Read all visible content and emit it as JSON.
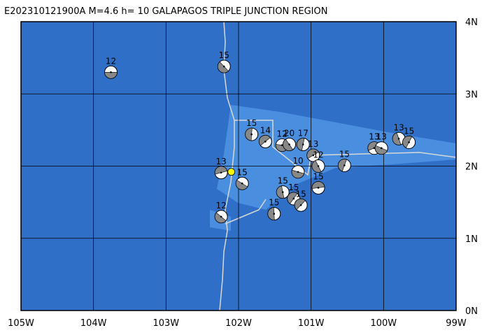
{
  "map": {
    "title": "E202310121900A M=4.6 h= 10 GALAPAGOS TRIPLE JUNCTION REGION",
    "lon_range": [
      -105,
      -99
    ],
    "lat_range": [
      0,
      4
    ],
    "lon_ticks": [
      {
        "value": -105,
        "label": "105W"
      },
      {
        "value": -104,
        "label": "104W"
      },
      {
        "value": -103,
        "label": "103W"
      },
      {
        "value": -102,
        "label": "102W"
      },
      {
        "value": -101,
        "label": "101W"
      },
      {
        "value": -100,
        "label": "100W"
      },
      {
        "value": -99,
        "label": "99W"
      }
    ],
    "lat_ticks": [
      {
        "value": 4,
        "label": "4N"
      },
      {
        "value": 3,
        "label": "3N"
      },
      {
        "value": 2,
        "label": "2N"
      },
      {
        "value": 1,
        "label": "1N"
      },
      {
        "value": 0,
        "label": "0N"
      }
    ],
    "events": [
      {
        "lon": -103.76,
        "lat": 3.3,
        "label": "12"
      },
      {
        "lon": -102.2,
        "lat": 3.38,
        "label": "15"
      },
      {
        "lon": -101.82,
        "lat": 2.44,
        "label": "15"
      },
      {
        "lon": -101.63,
        "lat": 2.34,
        "label": "14"
      },
      {
        "lon": -101.4,
        "lat": 2.29,
        "label": "12"
      },
      {
        "lon": -101.3,
        "lat": 2.3,
        "label": "20"
      },
      {
        "lon": -101.11,
        "lat": 2.3,
        "label": "17"
      },
      {
        "lon": -100.97,
        "lat": 2.15,
        "label": "13"
      },
      {
        "lon": -101.18,
        "lat": 1.92,
        "label": "10"
      },
      {
        "lon": -100.9,
        "lat": 2.0,
        "label": "12"
      },
      {
        "lon": -100.54,
        "lat": 2.01,
        "label": "15"
      },
      {
        "lon": -100.13,
        "lat": 2.25,
        "label": "13"
      },
      {
        "lon": -100.03,
        "lat": 2.25,
        "label": "13"
      },
      {
        "lon": -99.79,
        "lat": 2.38,
        "label": "13"
      },
      {
        "lon": -99.65,
        "lat": 2.33,
        "label": "15"
      },
      {
        "lon": -102.24,
        "lat": 1.91,
        "label": "13"
      },
      {
        "lon": -101.95,
        "lat": 1.76,
        "label": "15"
      },
      {
        "lon": -101.39,
        "lat": 1.64,
        "label": "15"
      },
      {
        "lon": -101.24,
        "lat": 1.55,
        "label": "15"
      },
      {
        "lon": -100.9,
        "lat": 1.7,
        "label": "15"
      },
      {
        "lon": -102.24,
        "lat": 1.3,
        "label": "12"
      },
      {
        "lon": -101.51,
        "lat": 1.34,
        "label": "15"
      },
      {
        "lon": -101.14,
        "lat": 1.46,
        "label": "15"
      }
    ],
    "epicenter": {
      "lon": -102.1,
      "lat": 1.92
    }
  }
}
